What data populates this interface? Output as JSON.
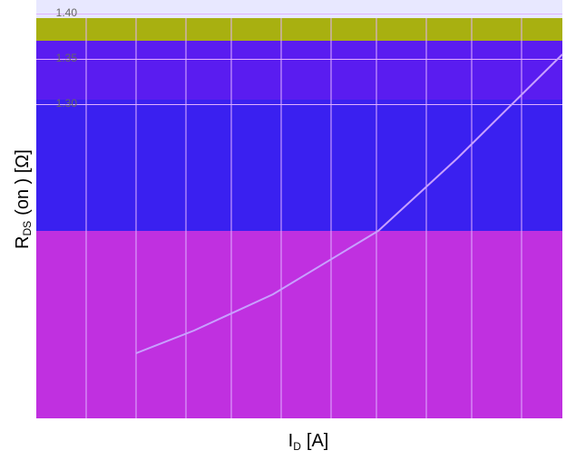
{
  "chart_data": {
    "type": "line",
    "y_label": "R",
    "y_label_sub": "DS",
    "y_label_rest": "(on ) [Ω]",
    "x_label": "I",
    "x_label_sub": "D",
    "x_label_rest": "[A]",
    "ylim": [
      0.95,
      1.4
    ],
    "yticks": [
      {
        "value": 1.4,
        "label": "1.40"
      },
      {
        "value": 1.35,
        "label": "1.35"
      },
      {
        "value": 1.3,
        "label": "1.30"
      }
    ],
    "xlim": [
      0,
      10
    ],
    "x": [
      1.9,
      3.0,
      4.5,
      6.5,
      8.0,
      10.0
    ],
    "series": [
      {
        "color": "#c8a0ff",
        "values": [
          1.025,
          1.05,
          1.09,
          1.16,
          1.24,
          1.355
        ]
      }
    ]
  }
}
